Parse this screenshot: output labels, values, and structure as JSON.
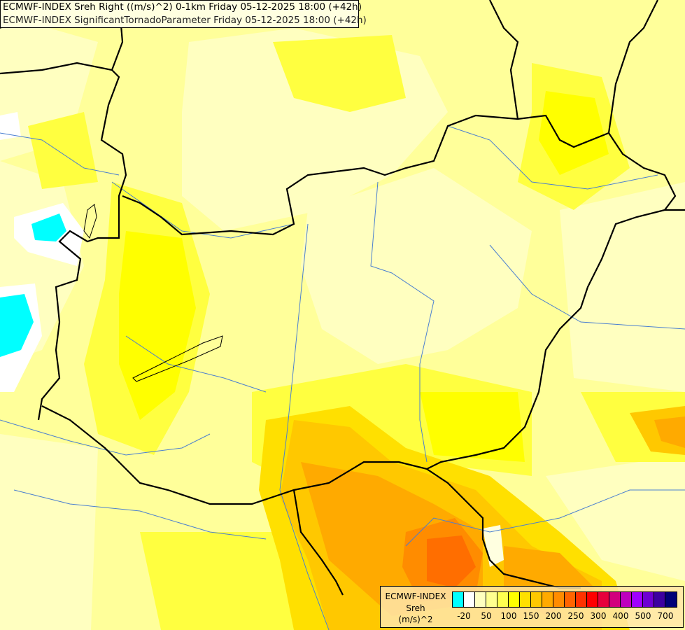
{
  "title": {
    "line1": "ECMWF-INDEX Sreh Right ((m/s)^2) 0-1km Friday 05-12-2025 18:00 (+42h)",
    "line2": "ECMWF-INDEX SignificantTornadoParameter Friday 05-12-2025 18:00 (+42h)"
  },
  "legend": {
    "source": "ECMWF-INDEX",
    "variable": "Sreh",
    "unit": "(m/s)^2",
    "colors": [
      "#00ffff",
      "#ffffff",
      "#ffffc0",
      "#ffff90",
      "#ffff50",
      "#ffff00",
      "#ffe000",
      "#ffc800",
      "#ffaa00",
      "#ff8c00",
      "#ff6400",
      "#ff3200",
      "#ff0000",
      "#e6003c",
      "#d2007d",
      "#be00be",
      "#a000ff",
      "#6e00d2",
      "#3c00a0",
      "#000078"
    ],
    "labels": [
      "-20",
      "50",
      "100",
      "150",
      "200",
      "250",
      "300",
      "400",
      "500",
      "700"
    ]
  }
}
